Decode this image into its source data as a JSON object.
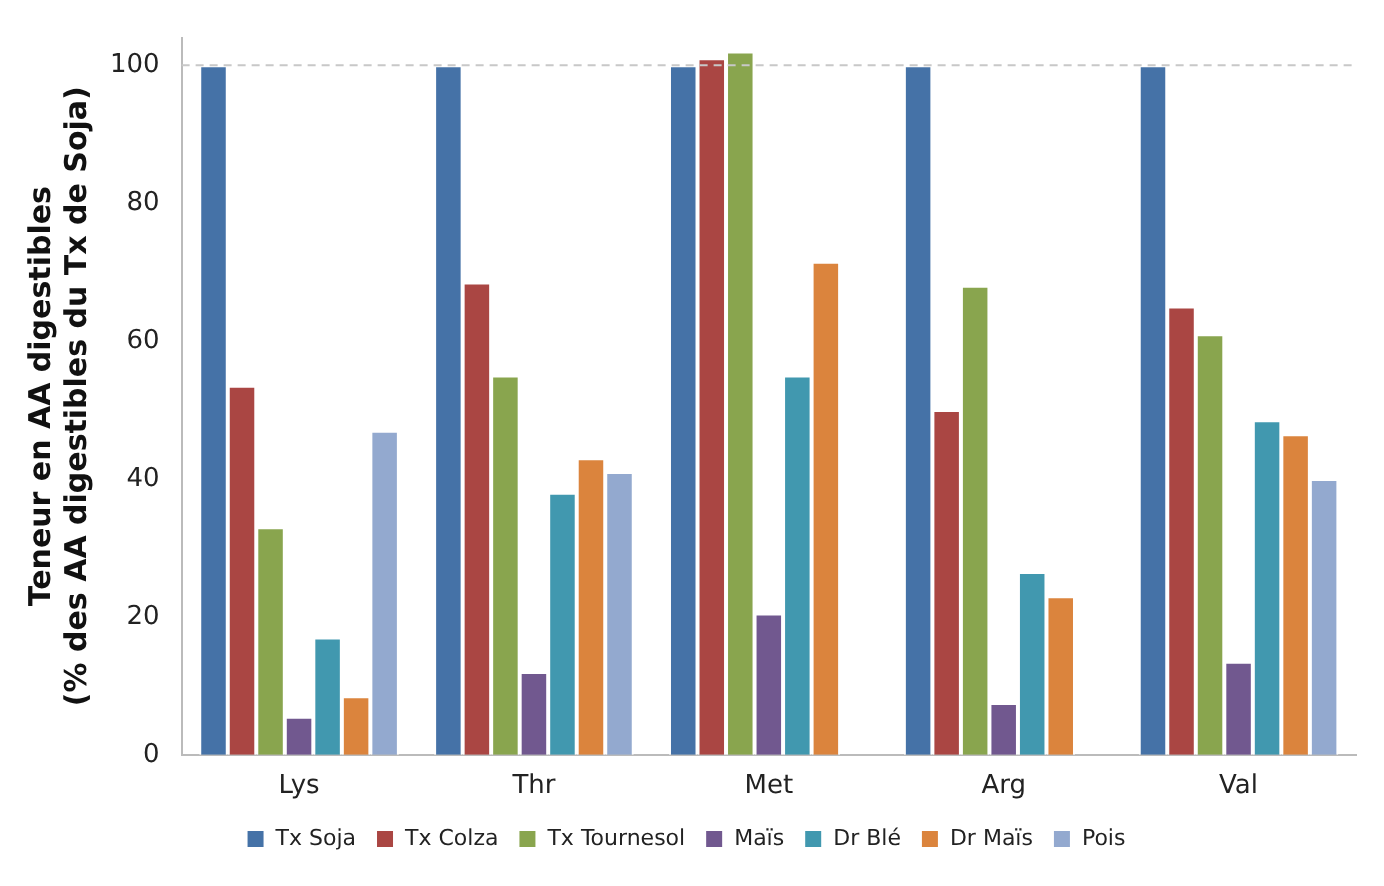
{
  "chart_data": {
    "type": "bar",
    "ylabel": "Teneur en AA digestibles (% des AA digestibles du Tx de Soja)",
    "categories": [
      "Lys",
      "Thr",
      "Met",
      "Arg",
      "Val"
    ],
    "series": [
      {
        "name": "Tx Soja",
        "color": "#4572a7",
        "values": [
          100,
          100,
          100,
          100,
          100
        ]
      },
      {
        "name": "Tx Colza",
        "color": "#aa4643",
        "values": [
          53.5,
          68.5,
          101,
          50,
          65
        ]
      },
      {
        "name": "Tx Tournesol",
        "color": "#89a54e",
        "values": [
          33,
          55,
          102,
          68,
          61
        ]
      },
      {
        "name": "Maïs",
        "color": "#71588f",
        "values": [
          5.5,
          12,
          20.5,
          7.5,
          13.5
        ]
      },
      {
        "name": "Dr Blé",
        "color": "#4198af",
        "values": [
          17,
          38,
          55,
          26.5,
          48.5
        ]
      },
      {
        "name": "Dr Maïs",
        "color": "#db843d",
        "values": [
          8.5,
          43,
          71.5,
          23,
          46.5
        ]
      },
      {
        "name": "Pois",
        "color": "#93a9cf",
        "values": [
          47,
          41,
          null,
          null,
          40
        ]
      }
    ],
    "ylim": [
      0,
      104
    ],
    "yticks": [
      0,
      20,
      40,
      60,
      80,
      100
    ],
    "grid": false,
    "legend": "bottom",
    "ref_lines": [
      {
        "axis": "y",
        "value": 100,
        "color": "#c8c8c8",
        "line_style": "dashed"
      }
    ]
  }
}
